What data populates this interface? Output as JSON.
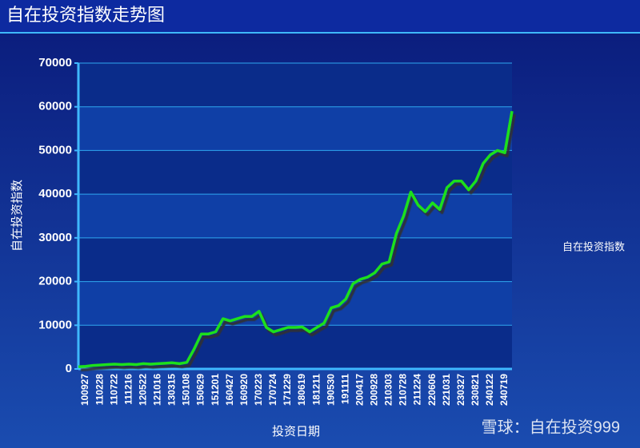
{
  "chart_data": {
    "type": "line",
    "title": "自在投资指数走势图",
    "x_label": "投资日期",
    "y_label": "自在投资指数",
    "watermark": "雪球：自在投资999",
    "categories": [
      null,
      "100927",
      null,
      "110228",
      null,
      "110722",
      null,
      "111216",
      null,
      "120522",
      null,
      "121016",
      null,
      "130315",
      null,
      "150108",
      null,
      "150629",
      null,
      "151201",
      null,
      "160427",
      null,
      "160920",
      null,
      "170223",
      null,
      "170724",
      null,
      "171229",
      null,
      "180619",
      null,
      "181211",
      null,
      "190530",
      null,
      "191111",
      null,
      "200417",
      null,
      "200928",
      null,
      "210303",
      null,
      "210728",
      null,
      "211224",
      null,
      "220606",
      null,
      "221031",
      null,
      "230327",
      null,
      "230821",
      null,
      "240122",
      null,
      "240719",
      null
    ],
    "series": [
      {
        "name": "自在投资指数",
        "color": "#1ee01e",
        "values": [
          500,
          600,
          800,
          900,
          1000,
          1100,
          1000,
          1100,
          1000,
          1200,
          1100,
          1200,
          1300,
          1400,
          1200,
          1500,
          4500,
          8000,
          8000,
          8500,
          11500,
          11000,
          11500,
          12000,
          12000,
          13200,
          9500,
          8500,
          9000,
          9500,
          9500,
          9600,
          8500,
          9500,
          10500,
          14000,
          14500,
          16000,
          19500,
          20500,
          21000,
          22000,
          24000,
          24500,
          31000,
          35000,
          40500,
          37500,
          36000,
          38000,
          36500,
          41500,
          43000,
          43000,
          41000,
          43000,
          47000,
          49000,
          50000,
          49500,
          59000
        ]
      }
    ],
    "ylim": [
      0,
      70000
    ],
    "yticks": [
      0,
      10000,
      20000,
      30000,
      40000,
      50000,
      60000,
      70000
    ],
    "grid": true,
    "legend": "right"
  }
}
